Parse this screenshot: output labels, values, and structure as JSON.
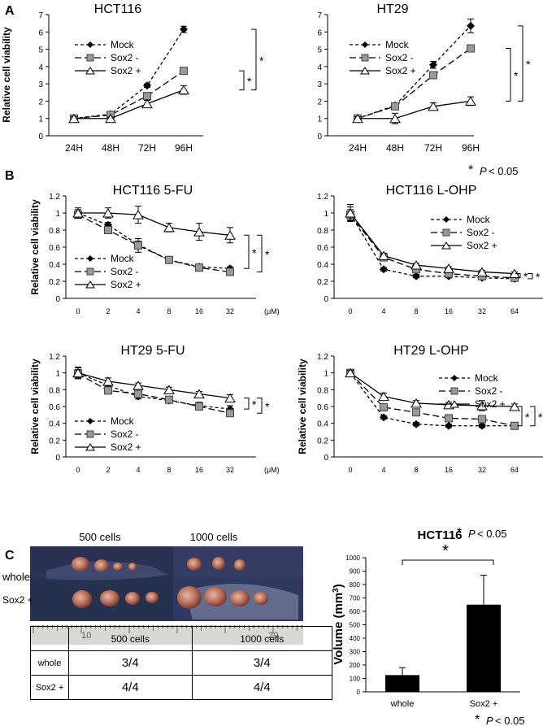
{
  "panel_labels": {
    "a": "A",
    "b": "B",
    "c": "C"
  },
  "significance": {
    "star": "*",
    "p_label": "P",
    "p_value": "< 0.05"
  },
  "chart_data": [
    {
      "id": "a1",
      "type": "line",
      "title": "HCT116",
      "xlabel": "",
      "ylabel": "Relative cell viability",
      "categories": [
        "24H",
        "48H",
        "72H",
        "96H"
      ],
      "ylim": [
        0,
        7
      ],
      "yticks": [
        0,
        1,
        2,
        3,
        4,
        5,
        6,
        7
      ],
      "legend_position": "top-left",
      "series": [
        {
          "name": "Mock",
          "values": [
            1.0,
            1.25,
            2.9,
            6.15
          ],
          "errors": [
            0.1,
            0.08,
            0.1,
            0.18
          ]
        },
        {
          "name": "Sox2 -",
          "values": [
            1.0,
            1.2,
            2.3,
            3.75
          ],
          "errors": [
            0.1,
            0.08,
            0.1,
            0.1
          ]
        },
        {
          "name": "Sox2 +",
          "values": [
            1.0,
            1.0,
            1.85,
            2.65
          ],
          "errors": [
            0.1,
            0.08,
            0.2,
            0.25
          ]
        }
      ],
      "brackets": [
        {
          "from": 3.75,
          "to": 2.65,
          "label": "*"
        },
        {
          "from": 6.15,
          "to": 2.65,
          "label": "*"
        }
      ]
    },
    {
      "id": "a2",
      "type": "line",
      "title": "HT29",
      "xlabel": "",
      "ylabel": "",
      "categories": [
        "24H",
        "48H",
        "72H",
        "96H"
      ],
      "ylim": [
        0,
        7
      ],
      "yticks": [
        0,
        1,
        2,
        3,
        4,
        5,
        6,
        7
      ],
      "legend_position": "top-left",
      "series": [
        {
          "name": "Mock",
          "values": [
            1.0,
            1.75,
            4.1,
            6.35
          ],
          "errors": [
            0.1,
            0.1,
            0.2,
            0.4
          ]
        },
        {
          "name": "Sox2 -",
          "values": [
            1.0,
            1.7,
            3.5,
            5.05
          ],
          "errors": [
            0.1,
            0.1,
            0.2,
            0.1
          ]
        },
        {
          "name": "Sox2 +",
          "values": [
            1.0,
            1.0,
            1.7,
            2.0
          ],
          "errors": [
            0.1,
            0.3,
            0.2,
            0.25
          ]
        }
      ],
      "brackets": [
        {
          "from": 5.05,
          "to": 2.0,
          "label": "*"
        },
        {
          "from": 6.35,
          "to": 2.0,
          "label": "*"
        }
      ]
    },
    {
      "id": "b1",
      "type": "line",
      "title": "HCT116  5-FU",
      "xlabel": "(μM)",
      "ylabel": "Relative cell viability",
      "categories": [
        "0",
        "2",
        "4",
        "8",
        "16",
        "32"
      ],
      "ylim": [
        0,
        1.2
      ],
      "yticks": [
        0,
        0.2,
        0.4,
        0.6,
        0.8,
        1,
        1.2
      ],
      "legend_position": "bottom-left",
      "series": [
        {
          "name": "Mock",
          "values": [
            1.0,
            0.86,
            0.63,
            0.45,
            0.37,
            0.35
          ],
          "errors": [
            0.04,
            0.03,
            0.04,
            0.03,
            0.02,
            0.02
          ]
        },
        {
          "name": "Sox2 -",
          "values": [
            0.98,
            0.8,
            0.62,
            0.45,
            0.36,
            0.31
          ],
          "errors": [
            0.04,
            0.03,
            0.08,
            0.03,
            0.02,
            0.02
          ]
        },
        {
          "name": "Sox2 +",
          "values": [
            1.0,
            1.0,
            0.98,
            0.83,
            0.78,
            0.74
          ],
          "errors": [
            0.06,
            0.06,
            0.1,
            0.05,
            0.1,
            0.09
          ]
        }
      ],
      "brackets": [
        {
          "from": 0.74,
          "to": 0.35,
          "label": "*"
        },
        {
          "from": 0.74,
          "to": 0.31,
          "label": "*"
        }
      ]
    },
    {
      "id": "b2",
      "type": "line",
      "title": "HCT116  L-OHP",
      "xlabel": "(μM)",
      "ylabel": "",
      "categories": [
        "0",
        "4",
        "8",
        "16",
        "32",
        "64"
      ],
      "ylim": [
        0,
        1.2
      ],
      "yticks": [
        0,
        0.2,
        0.4,
        0.6,
        0.8,
        1,
        1.2
      ],
      "legend_position": "top-right",
      "series": [
        {
          "name": "Mock",
          "values": [
            0.99,
            0.34,
            0.26,
            0.26,
            0.24,
            0.23
          ],
          "errors": [
            0.08,
            0.02,
            0.02,
            0.02,
            0.02,
            0.02
          ]
        },
        {
          "name": "Sox2 -",
          "values": [
            0.98,
            0.48,
            0.34,
            0.29,
            0.26,
            0.24
          ],
          "errors": [
            0.06,
            0.02,
            0.02,
            0.02,
            0.02,
            0.02
          ]
        },
        {
          "name": "Sox2 +",
          "values": [
            1.0,
            0.5,
            0.39,
            0.35,
            0.31,
            0.29
          ],
          "errors": [
            0.1,
            0.03,
            0.02,
            0.02,
            0.02,
            0.02
          ]
        }
      ],
      "brackets": [
        {
          "from": 0.29,
          "to": 0.24,
          "label": "*"
        },
        {
          "from": 0.29,
          "to": 0.23,
          "label": "*"
        }
      ]
    },
    {
      "id": "b3",
      "type": "line",
      "title": "HT29   5-FU",
      "xlabel": "(μM)",
      "ylabel": "Relative cell viability",
      "categories": [
        "0",
        "2",
        "4",
        "8",
        "16",
        "32"
      ],
      "ylim": [
        0,
        1.2
      ],
      "yticks": [
        0,
        0.2,
        0.4,
        0.6,
        0.8,
        1,
        1.2
      ],
      "legend_position": "bottom-left",
      "series": [
        {
          "name": "Mock",
          "values": [
            1.0,
            0.85,
            0.72,
            0.67,
            0.61,
            0.57
          ],
          "errors": [
            0.06,
            0.03,
            0.03,
            0.03,
            0.04,
            0.04
          ]
        },
        {
          "name": "Sox2 -",
          "values": [
            0.99,
            0.79,
            0.75,
            0.68,
            0.6,
            0.52
          ],
          "errors": [
            0.05,
            0.03,
            0.03,
            0.02,
            0.03,
            0.04
          ]
        },
        {
          "name": "Sox2 +",
          "values": [
            1.0,
            0.9,
            0.85,
            0.8,
            0.75,
            0.7
          ],
          "errors": [
            0.07,
            0.04,
            0.03,
            0.03,
            0.03,
            0.04
          ]
        }
      ],
      "brackets": [
        {
          "from": 0.7,
          "to": 0.57,
          "label": "*"
        },
        {
          "from": 0.7,
          "to": 0.52,
          "label": "*"
        }
      ]
    },
    {
      "id": "b4",
      "type": "line",
      "title": "HT29   L-OHP",
      "xlabel": "(μM)",
      "ylabel": "Relative cell viability",
      "categories": [
        "0",
        "4",
        "8",
        "16",
        "32",
        "64"
      ],
      "ylim": [
        0,
        1.2
      ],
      "yticks": [
        0,
        0.2,
        0.4,
        0.6,
        0.8,
        1,
        1.2
      ],
      "legend_position": "top-right",
      "series": [
        {
          "name": "Mock",
          "values": [
            1.0,
            0.47,
            0.39,
            0.37,
            0.37,
            0.37
          ],
          "errors": [
            0.03,
            0.02,
            0.02,
            0.02,
            0.02,
            0.02
          ]
        },
        {
          "name": "Sox2 -",
          "values": [
            1.0,
            0.59,
            0.53,
            0.46,
            0.45,
            0.37
          ],
          "errors": [
            0.03,
            0.03,
            0.02,
            0.02,
            0.02,
            0.02
          ]
        },
        {
          "name": "Sox2 +",
          "values": [
            1.0,
            0.72,
            0.64,
            0.62,
            0.61,
            0.6
          ],
          "errors": [
            0.03,
            0.04,
            0.03,
            0.03,
            0.06,
            0.03
          ]
        }
      ],
      "brackets": [
        {
          "from": 0.6,
          "to": 0.37,
          "label": "*"
        },
        {
          "from": 0.6,
          "to": 0.37,
          "label": "*"
        }
      ]
    },
    {
      "id": "c",
      "type": "bar",
      "title": "HCT116",
      "xlabel": "",
      "ylabel": "Volume (mm3)",
      "ylabel_parts": {
        "prefix": "Volume (mm",
        "sup": "3",
        "suffix": ")"
      },
      "categories": [
        "whole",
        "Sox2 +"
      ],
      "values": [
        125,
        650
      ],
      "errors": [
        55,
        220
      ],
      "ylim": [
        0,
        1000
      ],
      "yticks": [
        0,
        100,
        200,
        300,
        400,
        500,
        600,
        700,
        800,
        900,
        1000
      ],
      "bracket": {
        "label": "*"
      },
      "bar_color": "#000000"
    }
  ],
  "photo": {
    "col_labels": [
      "500 cells",
      "1000 cells"
    ],
    "row_labels": [
      "whole",
      "Sox2 +"
    ],
    "ruler_labels": [
      "10",
      "20"
    ]
  },
  "tumor_table": {
    "headers": [
      "",
      "500 cells",
      "1000 cells"
    ],
    "rows": [
      {
        "label": "whole",
        "values": [
          "3/4",
          "3/4"
        ]
      },
      {
        "label": "Sox2 +",
        "values": [
          "4/4",
          "4/4"
        ]
      }
    ]
  }
}
